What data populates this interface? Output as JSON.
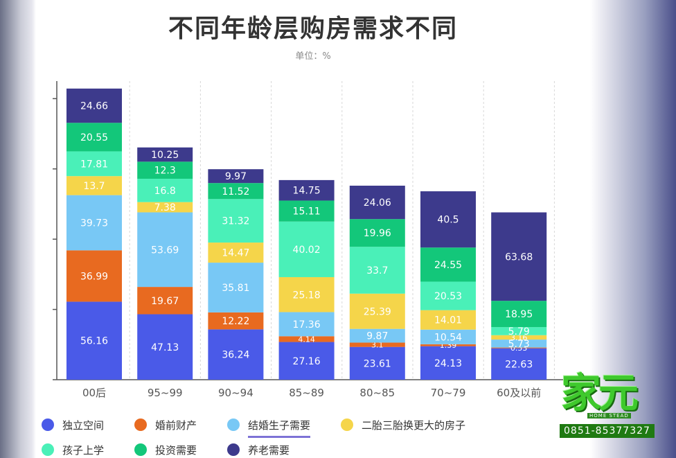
{
  "page": {
    "title": "不同年龄层购房需求不同",
    "unit": "单位：%"
  },
  "watermark": {
    "brand": "家元",
    "brand_en": "HOME STEAD",
    "phone": "0851-85377327"
  },
  "chart_data": {
    "type": "bar",
    "stacked": true,
    "title": "不同年龄层购房需求不同",
    "subtitle": "单位：%",
    "categories": [
      "00后",
      "95~99",
      "90~94",
      "85~89",
      "80~85",
      "70~79",
      "60及以前"
    ],
    "ylim": [
      0,
      215
    ],
    "grid": "vertical dashed",
    "legend_position": "bottom",
    "selected_series": "结婚生子需要",
    "series": [
      {
        "name": "独立空间",
        "color": "#4a5ae8",
        "values": [
          56.16,
          47.13,
          36.24,
          27.16,
          23.61,
          24.13,
          22.63
        ],
        "labels": [
          "56.16",
          "47.13",
          "36.24",
          "27.16",
          "23.61",
          "24.13",
          "22.63"
        ]
      },
      {
        "name": "婚前财产",
        "color": "#e86a20",
        "values": [
          36.99,
          19.67,
          12.22,
          4.14,
          3.1,
          1.39,
          0.53
        ],
        "labels": [
          "36.99",
          "19.67",
          "12.22",
          "4.14",
          "3.1",
          "1.39",
          "0.53"
        ]
      },
      {
        "name": "结婚生子需要",
        "color": "#78c8f5",
        "values": [
          39.73,
          53.69,
          35.81,
          17.36,
          9.87,
          10.54,
          5.73
        ],
        "labels": [
          "39.73",
          "53.69",
          "35.81",
          "17.36",
          "9.87",
          "10.54",
          "5.73"
        ]
      },
      {
        "name": "二胎三胎换更大的房子",
        "color": "#f5d54a",
        "values": [
          13.7,
          7.38,
          14.47,
          25.18,
          25.39,
          14.01,
          3.16
        ],
        "labels": [
          "13.7",
          "7.38",
          "14.47",
          "25.18",
          "25.39",
          "14.01",
          "3.16"
        ]
      },
      {
        "name": "孩子上学",
        "color": "#4af0b8",
        "values": [
          17.81,
          16.8,
          31.32,
          40.02,
          33.7,
          20.53,
          5.79
        ],
        "labels": [
          "17.81",
          "16.8",
          "31.32",
          "40.02",
          "33.7",
          "20.53",
          "5.79"
        ]
      },
      {
        "name": "投资需要",
        "color": "#13c77a",
        "values": [
          20.55,
          12.3,
          11.52,
          15.11,
          19.96,
          24.55,
          18.95
        ],
        "labels": [
          "20.55",
          "12.3",
          "11.52",
          "15.11",
          "19.96",
          "24.55",
          "18.95"
        ]
      },
      {
        "name": "养老需要",
        "color": "#3d3a8c",
        "values": [
          24.66,
          10.25,
          9.97,
          14.75,
          24.06,
          40.5,
          63.68
        ],
        "labels": [
          "24.66",
          "10.25",
          "9.97",
          "14.75",
          "24.06",
          "40.5",
          "63.68"
        ]
      }
    ]
  }
}
